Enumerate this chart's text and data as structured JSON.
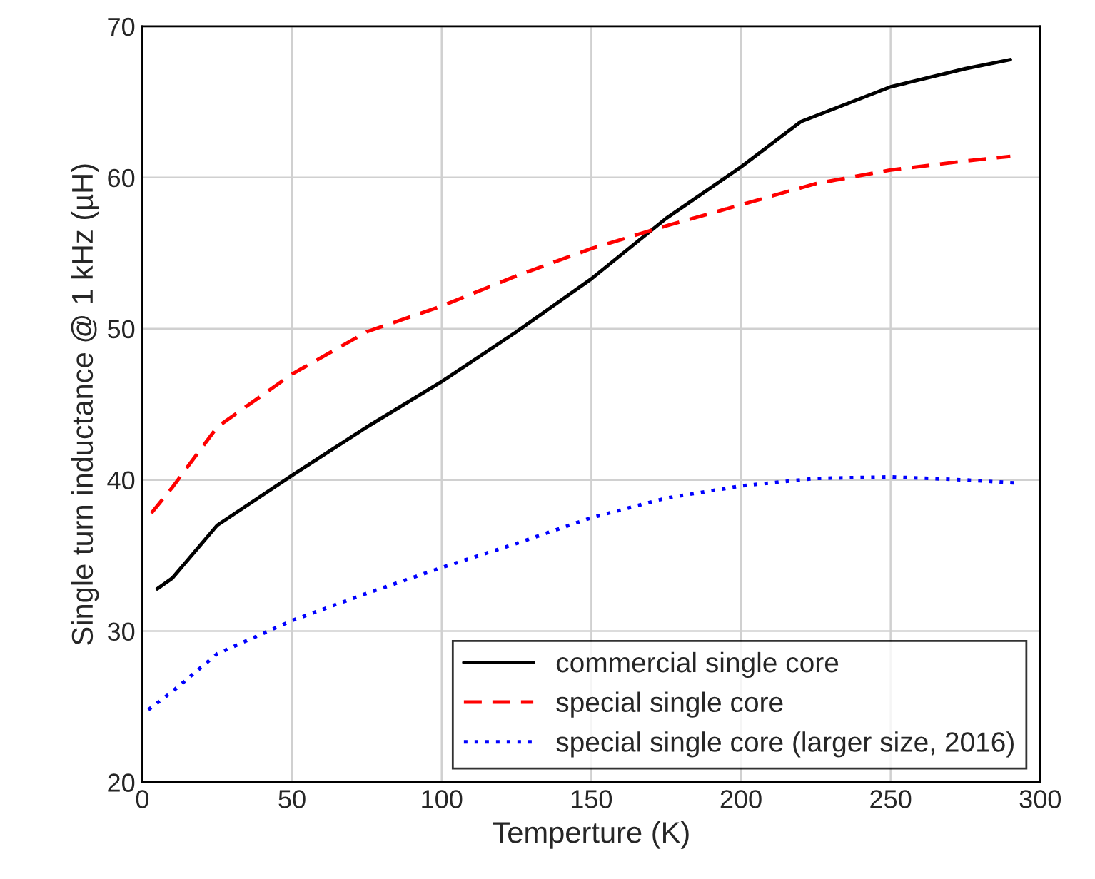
{
  "chart_data": {
    "type": "line",
    "xlabel": "Temperture (K)",
    "ylabel": "Single turn inductance @ 1 kHz (µH)",
    "xlim": [
      0,
      300
    ],
    "ylim": [
      20,
      70
    ],
    "xticks": [
      0,
      50,
      100,
      150,
      200,
      250,
      300
    ],
    "yticks": [
      20,
      30,
      40,
      50,
      60,
      70
    ],
    "grid": true,
    "legend": "bottom right",
    "series": [
      {
        "name": "commercial single core",
        "color": "#000000",
        "line_style": "solid",
        "x": [
          5,
          10,
          25,
          50,
          75,
          100,
          125,
          150,
          175,
          200,
          220,
          250,
          275,
          290
        ],
        "values": [
          32.8,
          33.5,
          37,
          40.3,
          43.5,
          46.5,
          49.8,
          53.3,
          57.3,
          60.7,
          63.7,
          66,
          67.2,
          67.8
        ]
      },
      {
        "name": "special single core",
        "color": "#ff0000",
        "line_style": "dashed",
        "x": [
          3,
          10,
          25,
          50,
          75,
          100,
          125,
          150,
          175,
          200,
          225,
          250,
          275,
          290
        ],
        "values": [
          37.8,
          39.5,
          43.5,
          47,
          49.8,
          51.5,
          53.5,
          55.3,
          56.8,
          58.2,
          59.6,
          60.5,
          61.1,
          61.4
        ]
      },
      {
        "name": "special single core (larger size, 2016)",
        "color": "#0000ff",
        "line_style": "dotted",
        "x": [
          2,
          10,
          25,
          50,
          75,
          100,
          125,
          150,
          175,
          200,
          225,
          250,
          275,
          292
        ],
        "values": [
          24.8,
          26,
          28.5,
          30.7,
          32.5,
          34.2,
          35.8,
          37.5,
          38.8,
          39.6,
          40.1,
          40.2,
          40,
          39.8
        ]
      }
    ]
  }
}
